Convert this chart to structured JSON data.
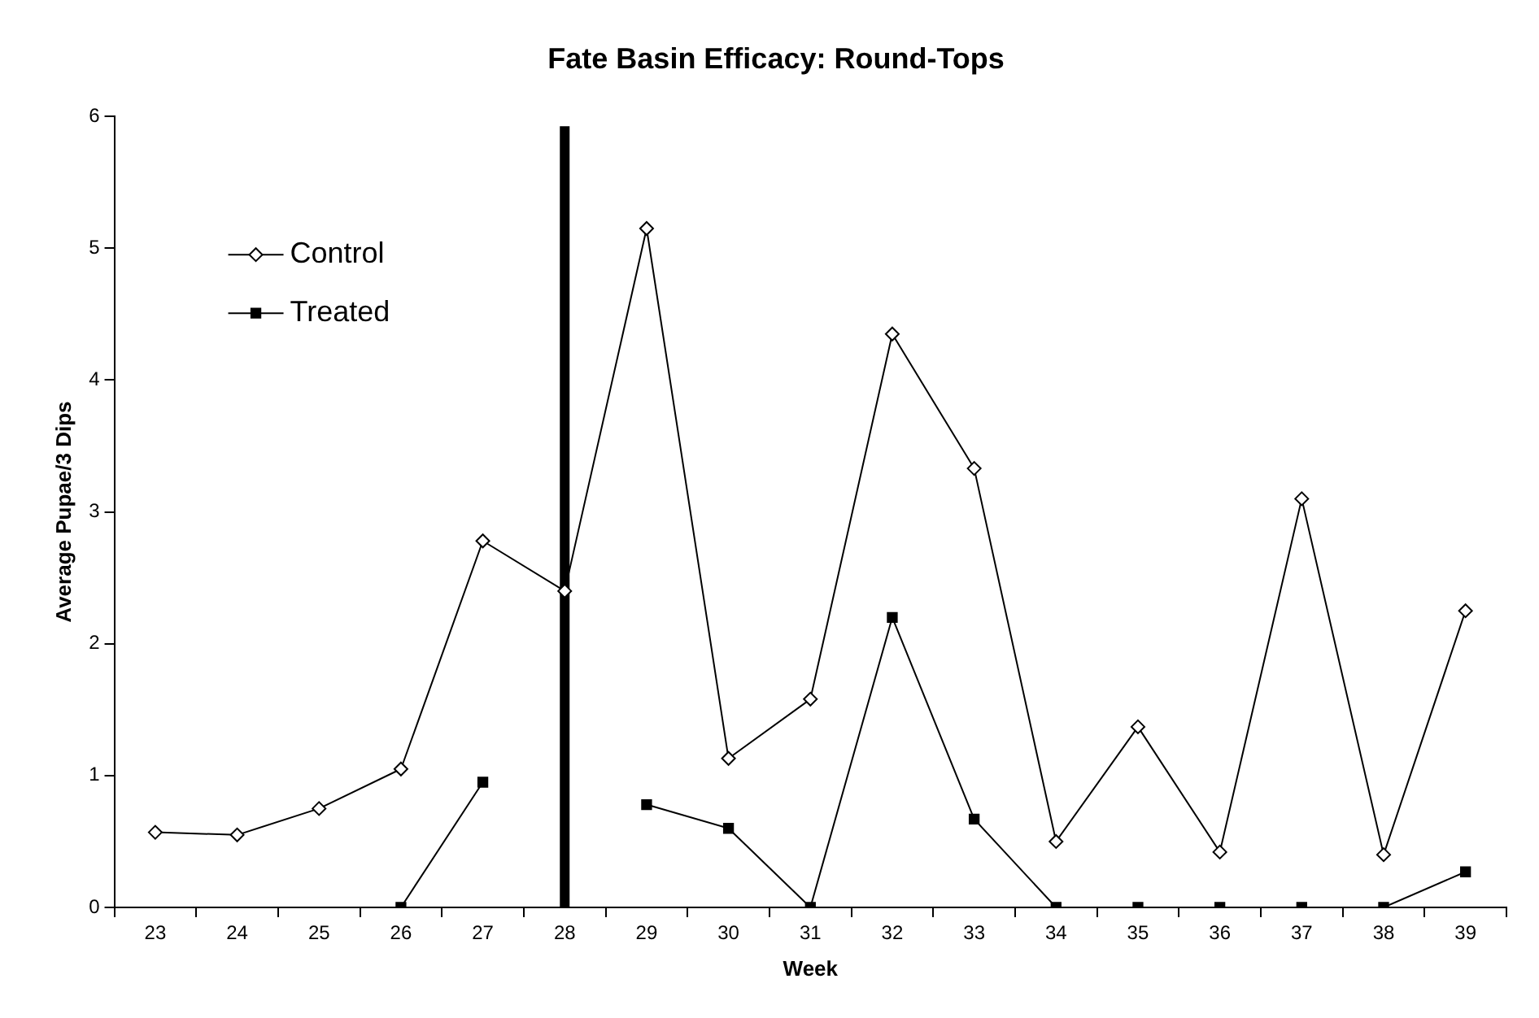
{
  "chart_data": {
    "type": "line",
    "title": "Fate Basin Efficacy: Round-Tops",
    "xlabel": "Week",
    "ylabel": "Average Pupae/3 Dips",
    "categories": [
      "23",
      "24",
      "25",
      "26",
      "27",
      "28",
      "29",
      "30",
      "31",
      "32",
      "33",
      "34",
      "35",
      "36",
      "37",
      "38",
      "39"
    ],
    "series": [
      {
        "name": "Control",
        "color": "#000000",
        "marker": "diamond",
        "values": [
          0.57,
          0.55,
          0.75,
          1.05,
          2.78,
          2.4,
          5.15,
          1.13,
          1.58,
          4.35,
          3.33,
          0.5,
          1.37,
          0.42,
          3.1,
          0.4,
          2.25
        ]
      },
      {
        "name": "Treated",
        "color": "#000000",
        "marker": "square",
        "values": [
          null,
          null,
          null,
          0,
          0.95,
          null,
          0.78,
          0.6,
          0,
          2.2,
          0.67,
          0,
          0,
          0,
          0,
          0,
          0.27
        ]
      }
    ],
    "ylim": [
      0,
      6
    ],
    "yticks": [
      0,
      1,
      2,
      3,
      4,
      5,
      6
    ],
    "grid": false,
    "legend": "top left",
    "ref_lines": [
      {
        "axis": "x",
        "value": "28",
        "color": "#000000"
      }
    ]
  }
}
